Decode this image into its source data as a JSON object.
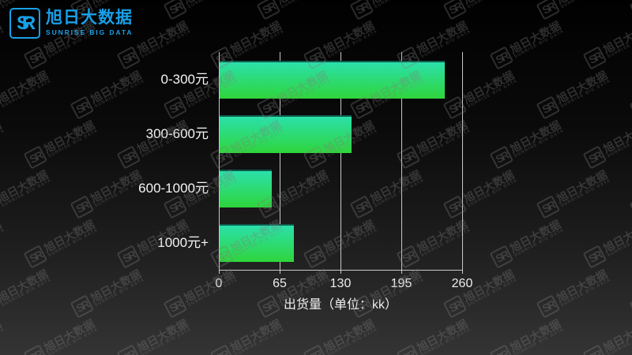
{
  "logo": {
    "monogram": "SR",
    "title": "旭日大数据",
    "subtitle": "SUNRISE BIG DATA",
    "brand_color": "#18a0e8"
  },
  "watermark": {
    "monogram": "SR",
    "line1": "旭日大数据",
    "line2": "SUNRISE BIG DATA"
  },
  "chart_data": {
    "type": "bar",
    "orientation": "horizontal",
    "title": "",
    "categories": [
      "0-300元",
      "300-600元",
      "600-1000元",
      "1000元+"
    ],
    "values": [
      241,
      141,
      56,
      79
    ],
    "xlabel": "出货量（单位：kk）",
    "ylabel": "",
    "xticks": [
      0,
      65,
      130,
      195,
      260
    ],
    "xlim": [
      0,
      260
    ],
    "grid": true,
    "legend": false,
    "bar_color_top": "#2be0aa",
    "bar_color_bottom": "#2fd53b",
    "bar_border_color": "#0e5a4e",
    "grid_color": "#c8c8c8",
    "text_color": "#f5f5f5",
    "background_top": "#010101",
    "background_bottom": "#343434"
  }
}
